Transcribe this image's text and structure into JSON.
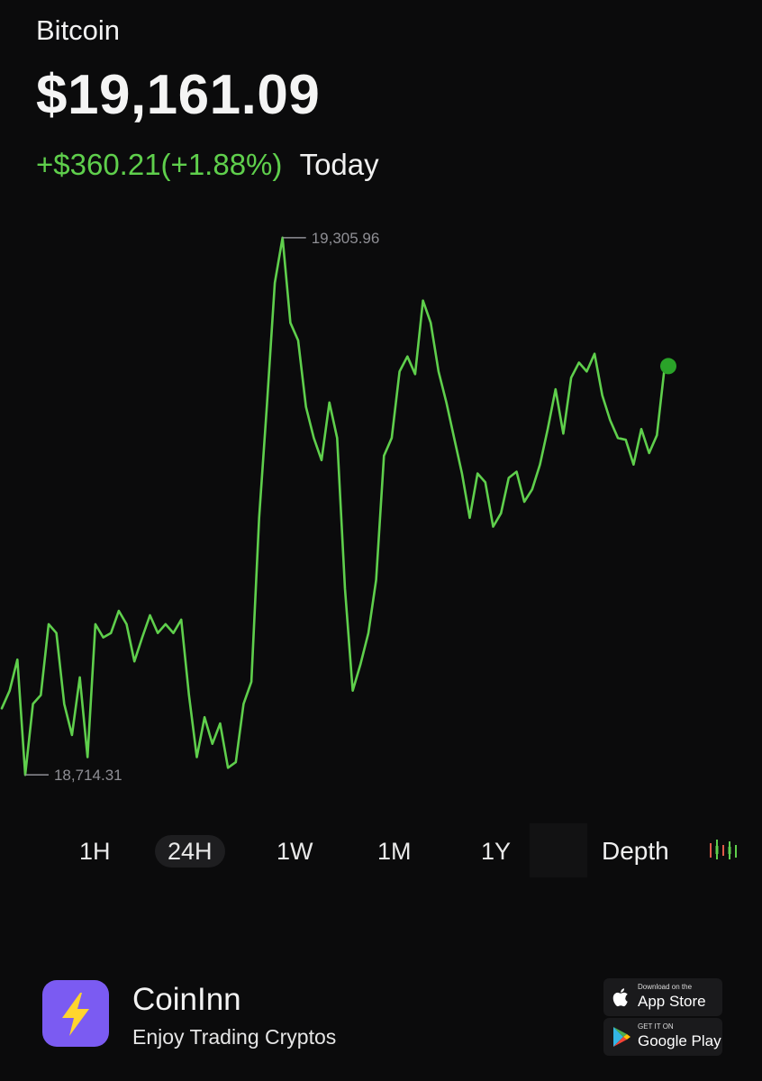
{
  "asset": {
    "name": "Bitcoin",
    "price": "$19,161.09",
    "change": "+$360.21(+1.88%)",
    "period": "Today"
  },
  "colors": {
    "background": "#0b0b0c",
    "positive": "#5fcf4c",
    "dot": "#2aa329",
    "accent_logo": "#7b5bf2",
    "logo_bolt": "#ffd52e"
  },
  "chart_data": {
    "type": "line",
    "series": [
      {
        "values": [
          18775,
          18795,
          18830,
          18700,
          18780,
          18790,
          18870,
          18860,
          18780,
          18745,
          18810,
          18720,
          18870,
          18855,
          18860,
          18885,
          18870,
          18828,
          18855,
          18880,
          18860,
          18870,
          18860,
          18875,
          18790,
          18720,
          18765,
          18735,
          18758,
          18708,
          18714.31,
          18780,
          18805,
          18990,
          19118,
          19255,
          19305.96,
          19210,
          19190,
          19115,
          19080,
          19055,
          19120,
          19080,
          18910,
          18795,
          18825,
          18860,
          18920,
          19060,
          19080,
          19155,
          19172,
          19152,
          19235,
          19210,
          19155,
          19120,
          19080,
          19040,
          18990,
          19040,
          19030,
          18980,
          18995,
          19035,
          19042,
          19008,
          19022,
          19050,
          19090,
          19135,
          19085,
          19148,
          19165,
          19155,
          19175,
          19128,
          19100,
          19080,
          19078,
          19050,
          19090,
          19063,
          19083,
          19161.09
        ],
        "ylim": [
          18690,
          19320
        ]
      }
    ],
    "annotations": {
      "max_label": "19,305.96",
      "min_label": "18,714.31"
    },
    "grid": false
  },
  "timeframes": [
    "1H",
    "24H",
    "1W",
    "1M",
    "1Y"
  ],
  "active_timeframe": "24H",
  "depth_label": "Depth",
  "footer": {
    "brand": "CoinInn",
    "tagline": "Enjoy Trading Cryptos",
    "app_store": {
      "small": "Download on the",
      "big": "App Store",
      "icon": "apple-icon"
    },
    "google_play": {
      "small": "GET IT ON",
      "big": "Google Play",
      "icon": "play-icon"
    }
  }
}
